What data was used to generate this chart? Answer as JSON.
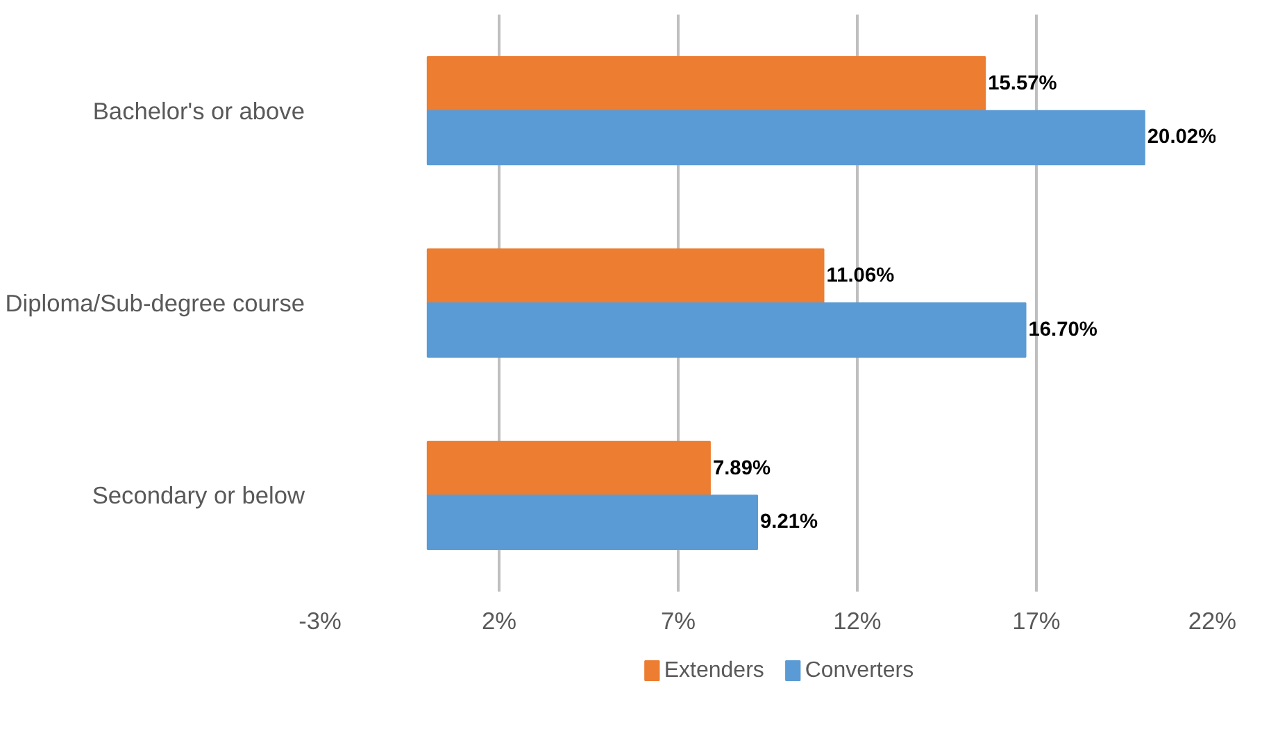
{
  "chart_data": {
    "type": "bar",
    "orientation": "horizontal",
    "categories": [
      "Bachelor's or above",
      "Diploma/Sub-degree course",
      "Secondary or below"
    ],
    "series": [
      {
        "name": "Extenders",
        "color": "#ed7d31",
        "values": [
          15.57,
          11.06,
          7.89
        ],
        "value_labels": [
          "15.57%",
          "11.06%",
          "7.89%"
        ]
      },
      {
        "name": "Converters",
        "color": "#5b9bd5",
        "values": [
          20.02,
          16.7,
          9.21
        ],
        "value_labels": [
          "20.02%",
          "16.70%",
          "9.21%"
        ]
      }
    ],
    "xlim": [
      -3,
      22
    ],
    "xticks": [
      {
        "value": -3,
        "label": "-3%"
      },
      {
        "value": 2,
        "label": "2%"
      },
      {
        "value": 7,
        "label": "7%"
      },
      {
        "value": 12,
        "label": "12%"
      },
      {
        "value": 17,
        "label": "17%"
      },
      {
        "value": 22,
        "label": "22%"
      }
    ],
    "grid": "x",
    "legend": "bottom"
  }
}
